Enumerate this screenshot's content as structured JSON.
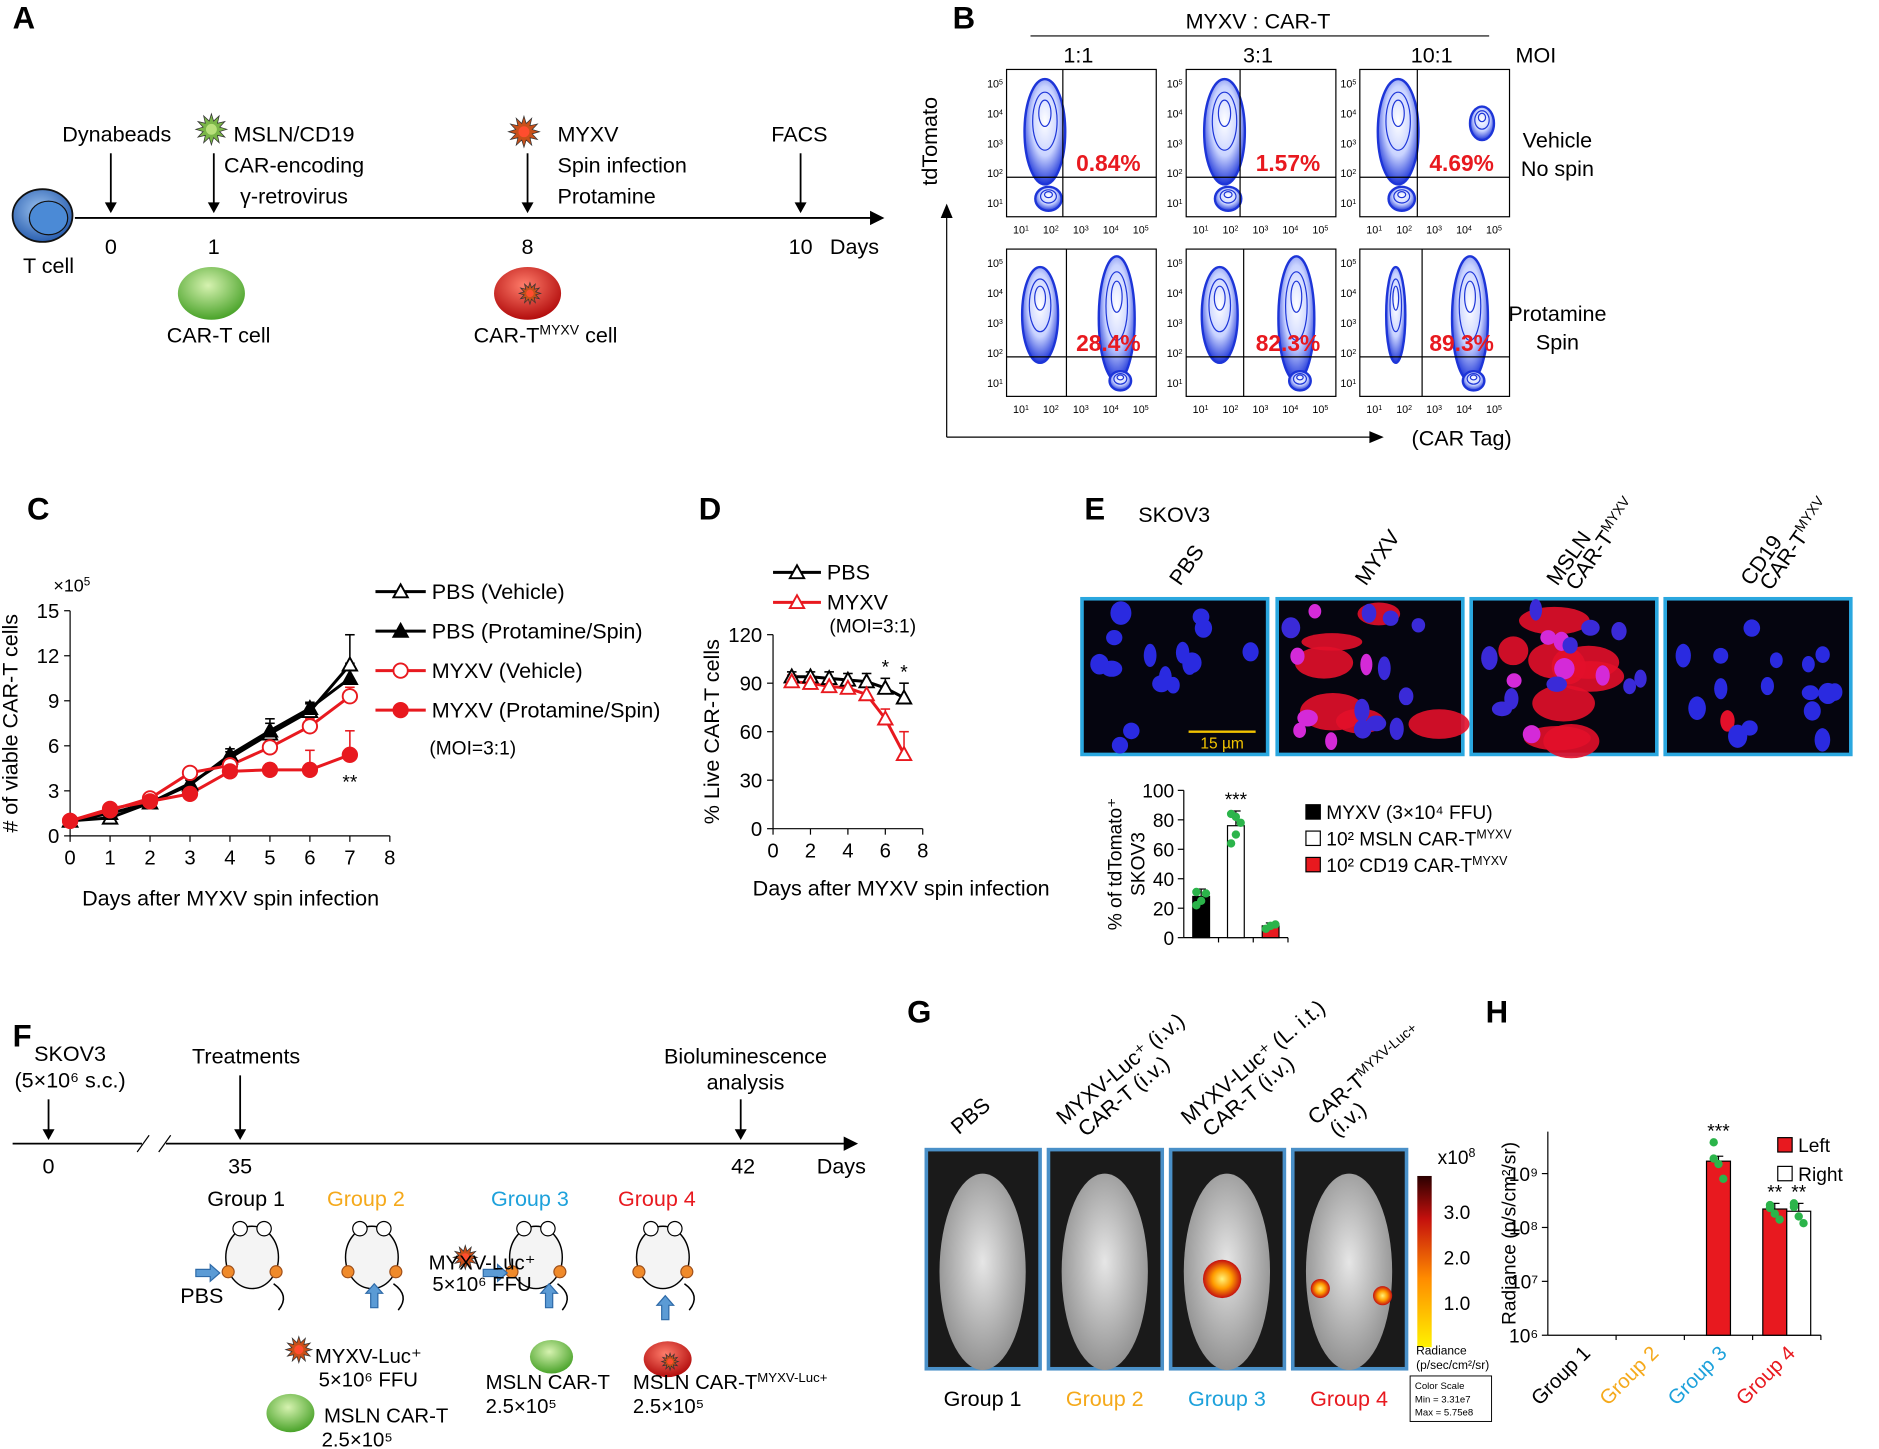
{
  "panel_labels": [
    "A",
    "B",
    "C",
    "D",
    "E",
    "F",
    "G",
    "H"
  ],
  "panel_a": {
    "t_cell": "T cell",
    "steps": [
      {
        "day": "0",
        "label": [
          "Dynabeads"
        ]
      },
      {
        "day": "1",
        "label": [
          "MSLN/CD19",
          "CAR-encoding",
          "γ-retrovirus"
        ]
      },
      {
        "day": "8",
        "label": [
          "MYXV",
          "Spin infection",
          "Protamine"
        ]
      },
      {
        "day": "10",
        "label": [
          "FACS"
        ]
      }
    ],
    "days_unit": "Days",
    "car_t": "CAR-T cell",
    "car_t_myxv": {
      "base": "CAR-T",
      "sup": "MYXV",
      "tail": " cell"
    }
  },
  "panel_b": {
    "header": "MYXV : CAR-T",
    "ratios": [
      "1:1",
      "3:1",
      "10:1"
    ],
    "moi": "MOI",
    "rows": [
      {
        "label": [
          "Vehicle",
          "No spin"
        ],
        "percents": [
          "0.84%",
          "1.57%",
          "4.69%"
        ]
      },
      {
        "label": [
          "Protamine",
          "Spin"
        ],
        "percents": [
          "28.4%",
          "82.3%",
          "89.3%"
        ]
      }
    ],
    "y_label": "tdTomato",
    "x_label": "(CAR Tag)",
    "tick_base": "10",
    "tick_exponents": [
      "1",
      "2",
      "3",
      "4",
      "5"
    ]
  },
  "panel_e": {
    "cell_line": "SKOV3",
    "images": [
      {
        "lines": [
          "PBS"
        ]
      },
      {
        "lines": [
          "MYXV"
        ]
      },
      {
        "lines": [
          "MSLN",
          "CAR-T"
        ],
        "sup": "MYXV"
      },
      {
        "lines": [
          "CD19",
          "CAR-T"
        ],
        "sup": "MYXV"
      }
    ],
    "scale_bar": "15 µm"
  },
  "panel_f": {
    "start": [
      "SKOV3",
      "(5×10⁶ s.c.)"
    ],
    "treatment": "Treatments",
    "analysis": [
      "Bioluminescence",
      "analysis"
    ],
    "days": [
      "0",
      "35",
      "42"
    ],
    "days_unit": "Days",
    "groups": [
      "Group 1",
      "Group 2",
      "Group 3",
      "Group 4"
    ],
    "group_colors": [
      "#000000",
      "#f5a91b",
      "#1da1db",
      "#e8191f"
    ],
    "pbs": "PBS",
    "g2_myxv": [
      "MYXV-Luc⁺",
      "5×10⁶ FFU"
    ],
    "g2_car_t": [
      "MSLN CAR-T",
      "2.5×10⁵"
    ],
    "g3_myxv": [
      "MYXV-Luc⁺",
      "5×10⁶ FFU"
    ],
    "g3_car_t": [
      "MSLN CAR-T",
      "2.5×10⁵"
    ],
    "g4_car_t": {
      "base": "MSLN CAR-T",
      "sup": "MYXV-Luc+",
      "dose": "2.5×10⁵"
    }
  },
  "panel_g": {
    "headers": [
      {
        "lines": [
          "PBS"
        ]
      },
      {
        "lines": [
          "MYXV-Luc⁺ (i.v.)",
          "CAR-T (i.v.)"
        ]
      },
      {
        "lines": [
          "MYXV-Luc⁺ (L. i.t.)",
          "CAR-T (i.v.)"
        ]
      },
      {
        "lines": [
          "CAR-T",
          "(i.v.)"
        ],
        "sup": "MYXV-Luc+"
      }
    ],
    "groups": [
      "Group 1",
      "Group 2",
      "Group 3",
      "Group 4"
    ],
    "colorbar": {
      "unit": {
        "base": "x10",
        "exp": "8"
      },
      "ticks": [
        "3.0",
        "2.0",
        "1.0"
      ],
      "title": [
        "Radiance",
        "(p/sec/cm²/sr)"
      ],
      "scale_box": [
        "Color Scale",
        "Min = 3.31e7",
        "Max = 5.75e8"
      ]
    }
  },
  "chart_data": [
    {
      "type": "line",
      "y_label": "# of viable CAR-T cells",
      "x_label": "Days after MYXV spin infection",
      "y_multiplier": {
        "base": "×10",
        "exp": "5"
      },
      "x": [
        0,
        1,
        2,
        3,
        4,
        5,
        6,
        7
      ],
      "xlim": [
        0,
        8
      ],
      "xticks": [
        0,
        1,
        2,
        3,
        4,
        5,
        6,
        7,
        8
      ],
      "ylim": [
        0,
        15
      ],
      "yticks": [
        0,
        3,
        6,
        9,
        12,
        15
      ],
      "series": [
        {
          "name": "PBS (Vehicle)",
          "color": "#000000",
          "marker": "triangle-open",
          "values": [
            1,
            1.2,
            2.2,
            3.5,
            5.2,
            6.8,
            8.3,
            11.4
          ],
          "errors": [
            0.2,
            0.2,
            0.3,
            0.3,
            0.4,
            0.7,
            0.5,
            2.0
          ]
        },
        {
          "name": "PBS (Protamine/Spin)",
          "color": "#000000",
          "marker": "triangle-filled",
          "values": [
            1,
            1.5,
            2.2,
            3.4,
            5.4,
            7.0,
            8.5,
            10.5
          ],
          "errors": [
            0.2,
            0.2,
            0.3,
            0.3,
            0.4,
            0.8,
            0.4,
            1.0
          ]
        },
        {
          "name": "MYXV (Vehicle)",
          "color": "#e8191f",
          "marker": "circle-open",
          "values": [
            1,
            1.7,
            2.5,
            4.2,
            4.7,
            5.9,
            7.3,
            9.3
          ],
          "errors": [
            0.1,
            0.2,
            0.2,
            0.3,
            0.4,
            0.5,
            0.5,
            0.6
          ]
        },
        {
          "name": "MYXV (Protamine/Spin)",
          "color": "#e8191f",
          "marker": "circle-filled",
          "values": [
            1,
            1.8,
            2.3,
            2.8,
            4.3,
            4.4,
            4.4,
            5.4
          ],
          "errors": [
            0.1,
            0.2,
            0.2,
            0.2,
            0.3,
            0.4,
            1.3,
            1.6
          ],
          "significance": [
            null,
            null,
            null,
            null,
            null,
            null,
            null,
            "**"
          ],
          "significance_position": "below"
        }
      ],
      "note": "(MOI=3:1)"
    },
    {
      "type": "line",
      "y_label": "% Live CAR-T cells",
      "x_label": "Days after MYXV spin infection",
      "x": [
        1,
        2,
        3,
        4,
        5,
        6,
        7
      ],
      "xlim": [
        0,
        8
      ],
      "xticks": [
        0,
        2,
        4,
        6,
        8
      ],
      "ylim": [
        0,
        120
      ],
      "yticks": [
        0,
        30,
        60,
        90,
        120
      ],
      "series": [
        {
          "name": "PBS",
          "color": "#000000",
          "marker": "triangle-open",
          "values": [
            94,
            94,
            93,
            92,
            91,
            87,
            81
          ],
          "errors": [
            3,
            3,
            4,
            4,
            5,
            6,
            9
          ],
          "significance": [
            null,
            null,
            null,
            null,
            null,
            "*",
            "*"
          ],
          "significance_position": "above"
        },
        {
          "name": "MYXV",
          "color": "#e8191f",
          "marker": "triangle-open",
          "values": [
            91,
            90,
            88,
            87,
            83,
            68,
            46
          ],
          "errors": [
            4,
            4,
            4,
            4,
            5,
            6,
            14
          ]
        }
      ],
      "note": "(MOI=3:1)"
    },
    {
      "type": "bar",
      "y_label": [
        "% of tdTomato⁺",
        "SKOV3"
      ],
      "categories": [
        null,
        null,
        null
      ],
      "ylim": [
        0,
        100
      ],
      "yticks": [
        0,
        20,
        40,
        60,
        80,
        100
      ],
      "series": [
        {
          "name": "MYXV (3×10⁴ FFU)",
          "color": "#000000",
          "values": [
            28,
            null,
            null
          ],
          "errors": [
            5,
            null,
            null
          ],
          "points": [
            [
              22,
              25,
              30,
              31
            ],
            null,
            null
          ]
        },
        {
          "name": "10² MSLN CAR-T",
          "name_sup": "MYXV",
          "color": "#ffffff",
          "values": [
            null,
            76,
            null
          ],
          "errors": [
            null,
            10,
            null
          ],
          "points": [
            null,
            [
              64,
              70,
              78,
              84,
              82
            ],
            null
          ],
          "significance": [
            null,
            "***",
            null
          ]
        },
        {
          "name": "10² CD19 CAR-T",
          "name_sup": "MYXV",
          "color": "#e8191f",
          "values": [
            null,
            null,
            8
          ],
          "errors": [
            null,
            null,
            2
          ],
          "points": [
            null,
            null,
            [
              6,
              8,
              9
            ]
          ]
        }
      ]
    },
    {
      "type": "bar",
      "log_y": true,
      "y_label": "Radiance (p/s/cm²/sr)",
      "categories": [
        "Group 1",
        "Group 2",
        "Group 3",
        "Group 4"
      ],
      "category_colors": [
        "#000000",
        "#f5a91b",
        "#1da1db",
        "#e8191f"
      ],
      "ylim": [
        1000000,
        6000000000
      ],
      "yticks": [
        {
          "value": 1000000,
          "label": "10⁶"
        },
        {
          "value": 10000000,
          "label": "10⁷"
        },
        {
          "value": 100000000,
          "label": "10⁸"
        },
        {
          "value": 1000000000,
          "label": "10⁹"
        }
      ],
      "legend": "upper-right",
      "series": [
        {
          "name": "Left",
          "color": "#e8191f",
          "values": [
            null,
            null,
            1700000000,
            220000000
          ],
          "errors": [
            null,
            null,
            400000000,
            60000000
          ],
          "points": [
            null,
            null,
            [
              3800000000,
              1500000000,
              800000000,
              1900000000
            ],
            [
              260000000,
              180000000,
              140000000,
              230000000
            ]
          ],
          "significance": [
            null,
            null,
            "***",
            "**"
          ]
        },
        {
          "name": "Right",
          "color": "#ffffff",
          "values": [
            null,
            null,
            null,
            200000000
          ],
          "errors": [
            null,
            null,
            null,
            80000000
          ],
          "points": [
            null,
            null,
            null,
            [
              240000000,
              160000000,
              120000000,
              280000000
            ]
          ],
          "significance": [
            null,
            null,
            null,
            "**"
          ]
        }
      ]
    }
  ]
}
